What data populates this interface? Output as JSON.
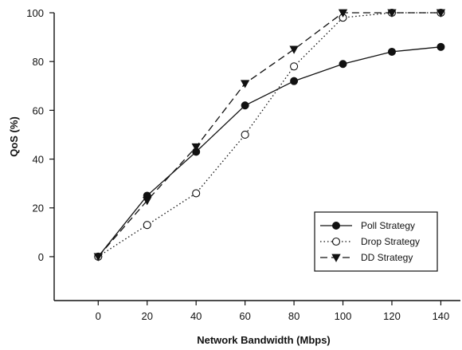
{
  "chart_data": {
    "type": "line",
    "title": "",
    "xlabel": "Network Bandwidth (Mbps)",
    "ylabel": "QoS (%)",
    "xlim": [
      -18,
      148
    ],
    "ylim": [
      -18,
      100
    ],
    "xticks": [
      0,
      20,
      40,
      60,
      80,
      100,
      120,
      140
    ],
    "yticks": [
      0,
      20,
      40,
      60,
      80,
      100
    ],
    "legend_position": "lower-right",
    "grid": false,
    "series": [
      {
        "name": "Poll Strategy",
        "line": "solid",
        "marker": "filled-circle",
        "x": [
          0,
          20,
          40,
          60,
          80,
          100,
          120,
          140
        ],
        "values": [
          0,
          25,
          43,
          62,
          72,
          79,
          84,
          86
        ]
      },
      {
        "name": "Drop Strategy",
        "line": "dotted",
        "marker": "open-circle",
        "x": [
          0,
          20,
          40,
          60,
          80,
          100,
          120,
          140
        ],
        "values": [
          0,
          13,
          26,
          50,
          78,
          98,
          100,
          100
        ]
      },
      {
        "name": "DD Strategy",
        "line": "dashed",
        "marker": "filled-triangle-down",
        "x": [
          0,
          20,
          40,
          60,
          80,
          100,
          120,
          140
        ],
        "values": [
          0,
          23,
          45,
          71,
          85,
          100,
          100,
          100
        ]
      }
    ]
  }
}
